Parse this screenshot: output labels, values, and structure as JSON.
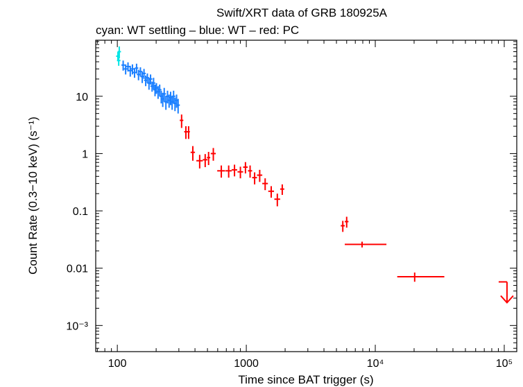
{
  "chart_data": {
    "type": "scatter",
    "title": "Swift/XRT data of GRB 180925A",
    "subtitle": "cyan: WT settling – blue: WT – red: PC",
    "xlabel": "Time since BAT trigger (s)",
    "ylabel": "Count Rate (0.3−10 keV) (s⁻¹)",
    "xscale": "log",
    "yscale": "log",
    "xlim": [
      68,
      125000
    ],
    "ylim": [
      0.00035,
      95
    ],
    "x_ticks": [
      {
        "value": 100,
        "label": "100"
      },
      {
        "value": 1000,
        "label": "1000"
      },
      {
        "value": 10000,
        "label": "10⁴"
      },
      {
        "value": 100000,
        "label": "10⁵"
      }
    ],
    "y_ticks": [
      {
        "value": 10,
        "label": "10"
      },
      {
        "value": 1,
        "label": "1"
      },
      {
        "value": 0.1,
        "label": "0.1"
      },
      {
        "value": 0.01,
        "label": "0.01"
      },
      {
        "value": 0.001,
        "label": "10⁻³"
      }
    ],
    "series": [
      {
        "name": "WT settling",
        "color": "#00e5e5",
        "points": [
          {
            "x": 101,
            "y": 50,
            "yerr": 9
          },
          {
            "x": 102.5,
            "y": 42,
            "yerr": 8
          },
          {
            "x": 103.5,
            "y": 60,
            "yerr": 14
          }
        ]
      },
      {
        "name": "WT",
        "color": "#1a7fff",
        "points": [
          {
            "x": 111,
            "y": 35,
            "yerr": 7
          },
          {
            "x": 116,
            "y": 30,
            "yerr": 6
          },
          {
            "x": 121,
            "y": 33,
            "yerr": 6
          },
          {
            "x": 126,
            "y": 28,
            "yerr": 6
          },
          {
            "x": 131,
            "y": 30,
            "yerr": 6
          },
          {
            "x": 136,
            "y": 26,
            "yerr": 5
          },
          {
            "x": 141,
            "y": 31,
            "yerr": 6
          },
          {
            "x": 146,
            "y": 24,
            "yerr": 5
          },
          {
            "x": 151,
            "y": 27,
            "yerr": 5
          },
          {
            "x": 156,
            "y": 22,
            "yerr": 5
          },
          {
            "x": 161,
            "y": 25,
            "yerr": 5
          },
          {
            "x": 166,
            "y": 19,
            "yerr": 4
          },
          {
            "x": 171,
            "y": 21,
            "yerr": 4
          },
          {
            "x": 176,
            "y": 17,
            "yerr": 4
          },
          {
            "x": 181,
            "y": 20,
            "yerr": 4
          },
          {
            "x": 186,
            "y": 15,
            "yerr": 3
          },
          {
            "x": 191,
            "y": 17,
            "yerr": 4
          },
          {
            "x": 196,
            "y": 13,
            "yerr": 3
          },
          {
            "x": 201,
            "y": 14,
            "yerr": 3
          },
          {
            "x": 207,
            "y": 12,
            "yerr": 3
          },
          {
            "x": 213,
            "y": 13,
            "yerr": 3
          },
          {
            "x": 219,
            "y": 10,
            "yerr": 2.5
          },
          {
            "x": 225,
            "y": 9,
            "yerr": 2.5
          },
          {
            "x": 231,
            "y": 11,
            "yerr": 3
          },
          {
            "x": 238,
            "y": 8,
            "yerr": 2.2
          },
          {
            "x": 245,
            "y": 10,
            "yerr": 2.5
          },
          {
            "x": 252,
            "y": 8.5,
            "yerr": 2.2
          },
          {
            "x": 259,
            "y": 9.5,
            "yerr": 2.5
          },
          {
            "x": 266,
            "y": 8,
            "yerr": 2.2
          },
          {
            "x": 273,
            "y": 10,
            "yerr": 2.5
          },
          {
            "x": 280,
            "y": 7.5,
            "yerr": 2.0
          },
          {
            "x": 288,
            "y": 8.5,
            "yerr": 2.2
          },
          {
            "x": 296,
            "y": 7,
            "yerr": 2.0
          }
        ]
      },
      {
        "name": "PC",
        "color": "#ff0000",
        "points": [
          {
            "x": 315,
            "y": 3.8,
            "xerr": [
              10,
              10
            ],
            "yerr": 1.0
          },
          {
            "x": 340,
            "y": 2.4,
            "xerr": [
              10,
              10
            ],
            "yerr": 0.6
          },
          {
            "x": 357,
            "y": 2.4,
            "xerr": [
              8,
              8
            ],
            "yerr": 0.6
          },
          {
            "x": 385,
            "y": 1.05,
            "xerr": [
              15,
              15
            ],
            "yerr": 0.3
          },
          {
            "x": 435,
            "y": 0.75,
            "xerr": [
              25,
              25
            ],
            "yerr": 0.2
          },
          {
            "x": 480,
            "y": 0.78,
            "xerr": [
              20,
              20
            ],
            "yerr": 0.2
          },
          {
            "x": 510,
            "y": 0.85,
            "xerr": [
              15,
              15
            ],
            "yerr": 0.22
          },
          {
            "x": 555,
            "y": 1.0,
            "xerr": [
              25,
              25
            ],
            "yerr": 0.25
          },
          {
            "x": 640,
            "y": 0.5,
            "xerr": [
              45,
              45
            ],
            "yerr": 0.12
          },
          {
            "x": 730,
            "y": 0.5,
            "xerr": [
              40,
              40
            ],
            "yerr": 0.12
          },
          {
            "x": 810,
            "y": 0.52,
            "xerr": [
              40,
              40
            ],
            "yerr": 0.12
          },
          {
            "x": 900,
            "y": 0.48,
            "xerr": [
              45,
              45
            ],
            "yerr": 0.11
          },
          {
            "x": 985,
            "y": 0.58,
            "xerr": [
              40,
              40
            ],
            "yerr": 0.13
          },
          {
            "x": 1070,
            "y": 0.5,
            "xerr": [
              40,
              40
            ],
            "yerr": 0.12
          },
          {
            "x": 1160,
            "y": 0.38,
            "xerr": [
              50,
              50
            ],
            "yerr": 0.09
          },
          {
            "x": 1270,
            "y": 0.42,
            "xerr": [
              60,
              60
            ],
            "yerr": 0.1
          },
          {
            "x": 1400,
            "y": 0.3,
            "xerr": [
              70,
              70
            ],
            "yerr": 0.07
          },
          {
            "x": 1560,
            "y": 0.22,
            "xerr": [
              80,
              80
            ],
            "yerr": 0.05
          },
          {
            "x": 1740,
            "y": 0.16,
            "xerr": [
              90,
              90
            ],
            "yerr": 0.04
          },
          {
            "x": 1900,
            "y": 0.24,
            "xerr": [
              70,
              70
            ],
            "yerr": 0.05
          },
          {
            "x": 5600,
            "y": 0.055,
            "xerr": [
              200,
              200
            ],
            "yerr": 0.012
          },
          {
            "x": 6000,
            "y": 0.065,
            "xerr": [
              200,
              200
            ],
            "yerr": 0.014
          },
          {
            "x": 7900,
            "y": 0.026,
            "xerr": [
              2100,
              4300
            ],
            "yerr": 0.003
          },
          {
            "x": 20200,
            "y": 0.0071,
            "xerr": [
              5400,
              14100
            ],
            "yerr": 0.0013
          }
        ],
        "upper_limits": [
          {
            "x": 105000,
            "y": 0.0025
          }
        ]
      }
    ]
  }
}
